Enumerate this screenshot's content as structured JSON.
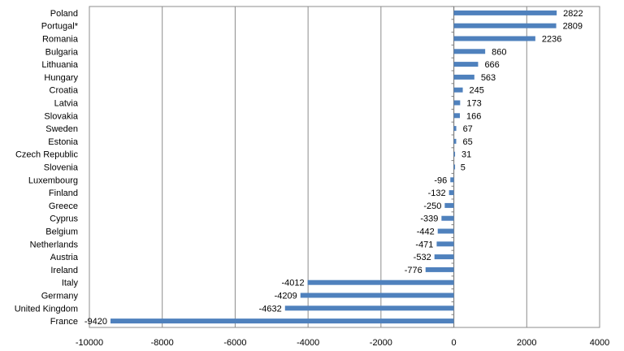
{
  "chart_data": {
    "type": "bar",
    "orientation": "horizontal",
    "title": "",
    "xlabel": "",
    "ylabel": "",
    "xlim": [
      -10000,
      4000
    ],
    "x_ticks": [
      -10000,
      -8000,
      -6000,
      -4000,
      -2000,
      0,
      2000,
      4000
    ],
    "grid": true,
    "legend": "none",
    "bar_color": "#4f81bd",
    "categories": [
      "Poland",
      "Portugal*",
      "Romania",
      "Bulgaria",
      "Lithuania",
      "Hungary",
      "Croatia",
      "Latvia",
      "Slovakia",
      "Sweden",
      "Estonia",
      "Czech Republic",
      "Slovenia",
      "Luxembourg",
      "Finland",
      "Greece",
      "Cyprus",
      "Belgium",
      "Netherlands",
      "Austria",
      "Ireland",
      "Italy",
      "Germany",
      "United Kingdom",
      "France"
    ],
    "values": [
      2822,
      2809,
      2236,
      860,
      666,
      563,
      245,
      173,
      166,
      67,
      65,
      31,
      5,
      -96,
      -132,
      -250,
      -339,
      -442,
      -471,
      -532,
      -776,
      -4012,
      -4209,
      -4632,
      -9420
    ],
    "value_labels": [
      "2822",
      "2809",
      "2236",
      "860",
      "666",
      "563",
      "245",
      "173",
      "166",
      "67",
      "65",
      "31",
      "5",
      "-96",
      "-132",
      "-250",
      "-339",
      "-442",
      "-471",
      "-532",
      "-776",
      "-4012",
      "-4209",
      "-4632",
      "-9420"
    ]
  }
}
